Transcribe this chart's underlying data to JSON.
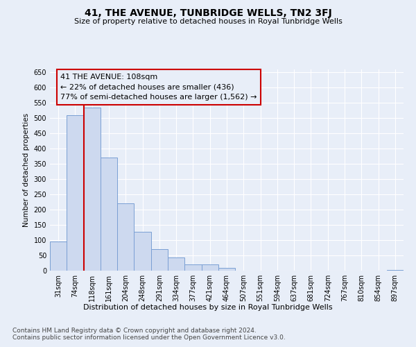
{
  "title": "41, THE AVENUE, TUNBRIDGE WELLS, TN2 3FJ",
  "subtitle": "Size of property relative to detached houses in Royal Tunbridge Wells",
  "xlabel": "Distribution of detached houses by size in Royal Tunbridge Wells",
  "ylabel": "Number of detached properties",
  "footnote1": "Contains HM Land Registry data © Crown copyright and database right 2024.",
  "footnote2": "Contains public sector information licensed under the Open Government Licence v3.0.",
  "annotation_line1": "41 THE AVENUE: 108sqm",
  "annotation_line2": "← 22% of detached houses are smaller (436)",
  "annotation_line3": "77% of semi-detached houses are larger (1,562) →",
  "bar_categories": [
    "31sqm",
    "74sqm",
    "118sqm",
    "161sqm",
    "204sqm",
    "248sqm",
    "291sqm",
    "334sqm",
    "377sqm",
    "421sqm",
    "464sqm",
    "507sqm",
    "551sqm",
    "594sqm",
    "637sqm",
    "681sqm",
    "724sqm",
    "767sqm",
    "810sqm",
    "854sqm",
    "897sqm"
  ],
  "bar_values": [
    95,
    510,
    535,
    370,
    220,
    128,
    70,
    43,
    20,
    20,
    10,
    0,
    0,
    0,
    0,
    0,
    0,
    0,
    0,
    0,
    3
  ],
  "bar_color": "#cdd9ef",
  "bar_edge_color": "#7a9fd4",
  "vline_color": "#cc0000",
  "annotation_border_color": "#cc0000",
  "ylim_max": 660,
  "background_color": "#e8eef8",
  "grid_color": "#ffffff"
}
